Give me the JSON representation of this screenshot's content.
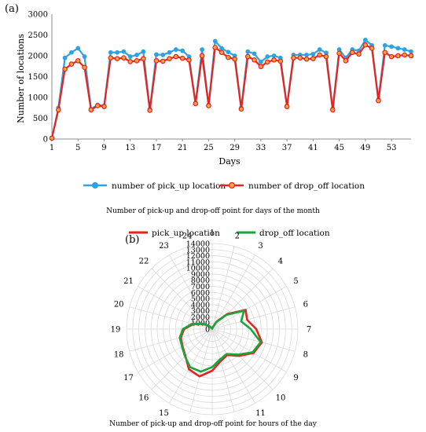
{
  "panel_a_label": "(a)",
  "panel_b_label": "(b)",
  "caption_a": "Number of pick-up and drop-off point for days of the month",
  "caption_b": "Number of pick-up and drop-off point for hours of the day",
  "colors": {
    "pickup_blue": "#2ea3e0",
    "dropoff_red": "#e8231d",
    "radar_green": "#1aa63c",
    "radar_red": "#e8231d",
    "grid": "#d9d9d9"
  },
  "chart_data": [
    {
      "type": "line",
      "title": "",
      "xlabel": "Days",
      "ylabel": "Number of locations",
      "ylim": [
        0,
        3000
      ],
      "yticks": [
        0,
        500,
        1000,
        1500,
        2000,
        2500,
        3000
      ],
      "xtick_labels": [
        "1",
        "5",
        "9",
        "13",
        "17",
        "21",
        "25",
        "29",
        "33",
        "37",
        "41",
        "45",
        "49",
        "53"
      ],
      "x": [
        1,
        2,
        3,
        4,
        5,
        6,
        7,
        8,
        9,
        10,
        11,
        12,
        13,
        14,
        15,
        16,
        17,
        18,
        19,
        20,
        21,
        22,
        23,
        24,
        25,
        26,
        27,
        28,
        29,
        30,
        31,
        32,
        33,
        34,
        35,
        36,
        37,
        38,
        39,
        40,
        41,
        42,
        43,
        44,
        45,
        46,
        47,
        48,
        49,
        50,
        51,
        52,
        53,
        54,
        55,
        56
      ],
      "series": [
        {
          "name": "number of pick_up location",
          "values": [
            20,
            750,
            1950,
            2080,
            2180,
            1980,
            720,
            820,
            800,
            2080,
            2080,
            2100,
            1980,
            2020,
            2100,
            720,
            2030,
            2020,
            2080,
            2150,
            2120,
            1980,
            870,
            2150,
            820,
            2350,
            2180,
            2090,
            2000,
            750,
            2100,
            2050,
            1850,
            1980,
            2000,
            1950,
            800,
            2020,
            2020,
            2020,
            2040,
            2150,
            2070,
            730,
            2150,
            1950,
            2150,
            2120,
            2380,
            2250,
            950,
            2250,
            2220,
            2180,
            2150,
            2100
          ]
        },
        {
          "name": "number of drop_off  location",
          "values": [
            20,
            700,
            1680,
            1800,
            1880,
            1720,
            700,
            800,
            780,
            1950,
            1930,
            1950,
            1860,
            1880,
            1930,
            690,
            1880,
            1870,
            1930,
            1980,
            1940,
            1900,
            850,
            2000,
            800,
            2200,
            2080,
            1960,
            1920,
            720,
            1980,
            1900,
            1740,
            1850,
            1900,
            1870,
            780,
            1950,
            1950,
            1920,
            1930,
            2020,
            1980,
            700,
            2060,
            1880,
            2080,
            2040,
            2260,
            2180,
            920,
            2080,
            1980,
            2000,
            2020,
            2000
          ]
        }
      ],
      "legend_position": "bottom"
    },
    {
      "type": "radar",
      "title": "",
      "categories": [
        "1",
        "2",
        "3",
        "4",
        "5",
        "6",
        "7",
        "8",
        "9",
        "10",
        "11",
        "12",
        "13",
        "14",
        "15",
        "16",
        "17",
        "18",
        "19",
        "20",
        "21",
        "22",
        "23",
        "24"
      ],
      "radial_ticks": [
        0,
        1000,
        2000,
        3000,
        4000,
        5000,
        6000,
        7000,
        8000,
        9000,
        10000,
        11000,
        12000,
        13000,
        14000
      ],
      "rmax": 14000,
      "series": [
        {
          "name": "pick_up location",
          "values": [
            100,
            300,
            1400,
            3500,
            6300,
            5900,
            7200,
            8400,
            7800,
            6200,
            4900,
            5400,
            6800,
            8000,
            7600,
            6200,
            5600,
            5300,
            4600,
            3200,
            1700,
            600,
            150,
            80
          ]
        },
        {
          "name": "drop_off location",
          "values": [
            100,
            250,
            1300,
            3300,
            6000,
            4900,
            6300,
            8200,
            7600,
            5900,
            4700,
            5100,
            6200,
            7200,
            7200,
            6300,
            5700,
            5500,
            4800,
            3400,
            1800,
            700,
            200,
            80
          ]
        }
      ],
      "legend_position": "top"
    }
  ]
}
